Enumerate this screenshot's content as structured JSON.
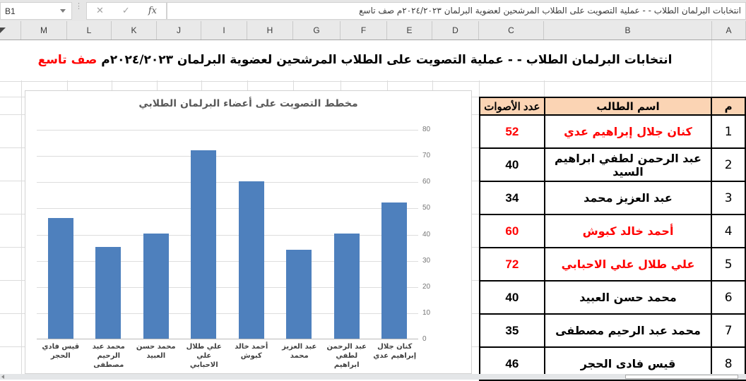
{
  "toolbar": {
    "name_box": "B1",
    "cancel_glyph": "✕",
    "enter_glyph": "✓",
    "fx_label": "fx",
    "formula_value": "انتخابات البرلمان الطلاب - - عملية التصويت على الطلاب المرشحين لعضوية البرلمان ٢٠٢٤/٢٠٢٣م صف تاسع"
  },
  "columns": [
    "M",
    "L",
    "K",
    "J",
    "I",
    "H",
    "G",
    "F",
    "E",
    "D",
    "C",
    "B",
    "A"
  ],
  "sheet_title": {
    "main": "انتخابات البرلمان الطلاب - - عملية التصويت على الطلاب المرشحين لعضوية البرلمان ٢٠٢٤/٢٠٢٣م",
    "grade": "صف تاسع"
  },
  "table": {
    "headers": {
      "num": "م",
      "name": "اسم الطالب",
      "votes": "عدد الأصوات"
    },
    "rows": [
      {
        "num": "1",
        "name": "كنان جلال إبراهيم عدي",
        "votes": "52",
        "highlight": true
      },
      {
        "num": "2",
        "name": "عبد الرحمن لطفي ابراهيم السيد",
        "votes": "40",
        "highlight": false
      },
      {
        "num": "3",
        "name": "عبد العزيز محمد",
        "votes": "34",
        "highlight": false
      },
      {
        "num": "4",
        "name": "أحمد خالد كبوش",
        "votes": "60",
        "highlight": true
      },
      {
        "num": "5",
        "name": "علي طلال علي الاحبابي",
        "votes": "72",
        "highlight": true
      },
      {
        "num": "6",
        "name": "محمد حسن العبيد",
        "votes": "40",
        "highlight": false
      },
      {
        "num": "7",
        "name": "محمد عبد الرحيم مصطفى",
        "votes": "35",
        "highlight": false
      },
      {
        "num": "8",
        "name": "قيس فادى الحجر",
        "votes": "46",
        "highlight": false
      }
    ]
  },
  "chart_data": {
    "type": "bar",
    "title": "مخطط التصويت على أعضاء البرلمان الطلابي",
    "direction": "rtl",
    "categories": [
      "كنان جلال إبراهيم عدي",
      "عبد الرحمن لطفي ابراهيم",
      "عبد العزيز محمد",
      "أحمد خالد كبوش",
      "علي طلال علي الاحبابي",
      "محمد حسن العبيد",
      "محمد عبد الرحيم مصطفى",
      "قيس فادي الحجر"
    ],
    "categories_lines": [
      [
        "كنان جلال",
        "إبراهيم عدي"
      ],
      [
        "عبد الرحمن",
        "لطفي ابراهيم"
      ],
      [
        "عبد العزيز",
        "محمد"
      ],
      [
        "أحمد خالد",
        "كبوش"
      ],
      [
        "علي طلال علي",
        "الاحبابي"
      ],
      [
        "محمد حسن",
        "العبيد"
      ],
      [
        "محمد عبد",
        "الرحيم مصطفى"
      ],
      [
        "قيس فادي",
        "الحجر"
      ]
    ],
    "values": [
      52,
      40,
      34,
      60,
      72,
      40,
      35,
      46
    ],
    "ylim": [
      0,
      80
    ],
    "ytick_step": 10,
    "grid": true,
    "legend": "none",
    "bar_color": "#4e80bd"
  },
  "colors": {
    "bar": "#4e80bd",
    "table_header_fill": "#fbd4b4",
    "highlight_red": "#ff0000",
    "toolbar_bg": "#e6e6e6"
  }
}
